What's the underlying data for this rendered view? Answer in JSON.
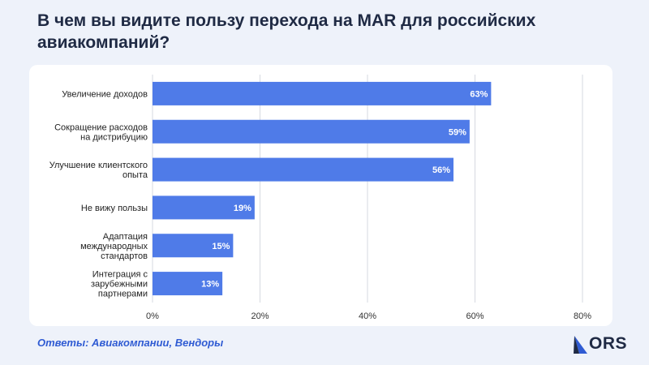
{
  "title": "В чем вы видите пользу перехода на MAR для российских авиакомпаний?",
  "footer": "Ответы: Авиакомпании, Вендоры",
  "logo": {
    "text": "ORS",
    "icon": "ors-wing-logo"
  },
  "colors": {
    "bar": "#4f7be8",
    "title": "#1f2a44",
    "footer": "#2f5bd3",
    "background": "#eef2fa"
  },
  "chart_data": {
    "type": "bar",
    "orientation": "horizontal",
    "categories": [
      [
        "Увеличение доходов"
      ],
      [
        "Сокращение расходов",
        "на дистрибуцию"
      ],
      [
        "Улучшение клиентского",
        "опыта"
      ],
      [
        "Не вижу пользы"
      ],
      [
        "Адаптация",
        "международных",
        "стандартов"
      ],
      [
        "Интеграция с",
        "зарубежными",
        "партнерами"
      ]
    ],
    "values": [
      63,
      59,
      56,
      19,
      15,
      13
    ],
    "value_labels": [
      "63%",
      "59%",
      "56%",
      "19%",
      "15%",
      "13%"
    ],
    "xlim": [
      0,
      80
    ],
    "xticks": [
      "0%",
      "20%",
      "40%",
      "60%",
      "80%"
    ],
    "grid": true
  }
}
